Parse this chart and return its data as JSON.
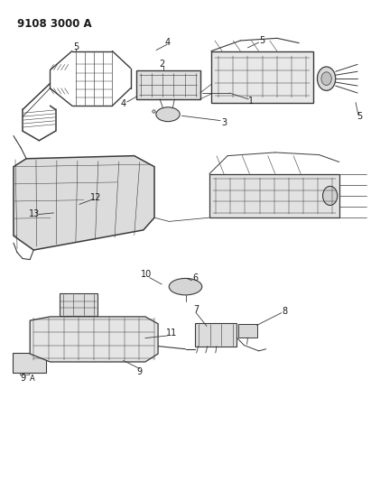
{
  "title": "9108 3000 A",
  "bg_color": "#ffffff",
  "line_color": "#3a3a3a",
  "text_color": "#1a1a1a",
  "fig_width": 4.11,
  "fig_height": 5.33,
  "dpi": 100
}
